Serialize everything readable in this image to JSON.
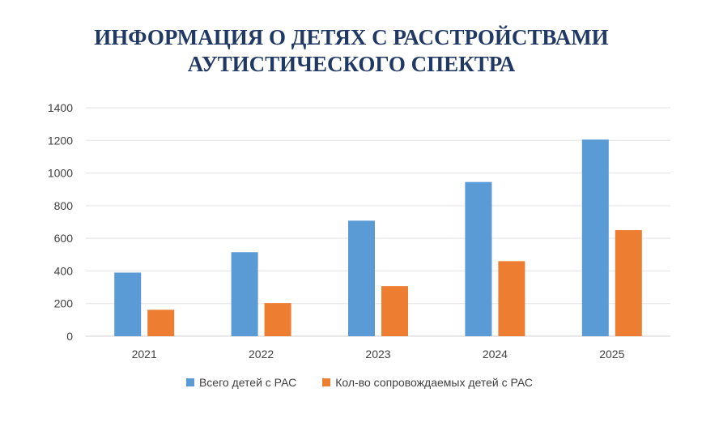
{
  "chart_data": {
    "type": "bar",
    "title_lines": [
      "ИНФОРМАЦИЯ О ДЕТЯХ С РАССТРОЙСТВАМИ",
      "АУТИСТИЧЕСКОГО СПЕКТРА"
    ],
    "categories": [
      "2021",
      "2022",
      "2023",
      "2024",
      "2025"
    ],
    "series": [
      {
        "name": "Всего детей с РАС",
        "values": [
          390,
          515,
          708,
          945,
          1205
        ],
        "color": "#5b9bd5"
      },
      {
        "name": "Кол-во сопровождаемых детей с РАС",
        "values": [
          162,
          203,
          307,
          460,
          650
        ],
        "color": "#ed7d31"
      }
    ],
    "ylim": [
      0,
      1400
    ],
    "yticks": [
      0,
      200,
      400,
      600,
      800,
      1000,
      1200,
      1400
    ],
    "grid": true,
    "legend_position": "bottom"
  }
}
